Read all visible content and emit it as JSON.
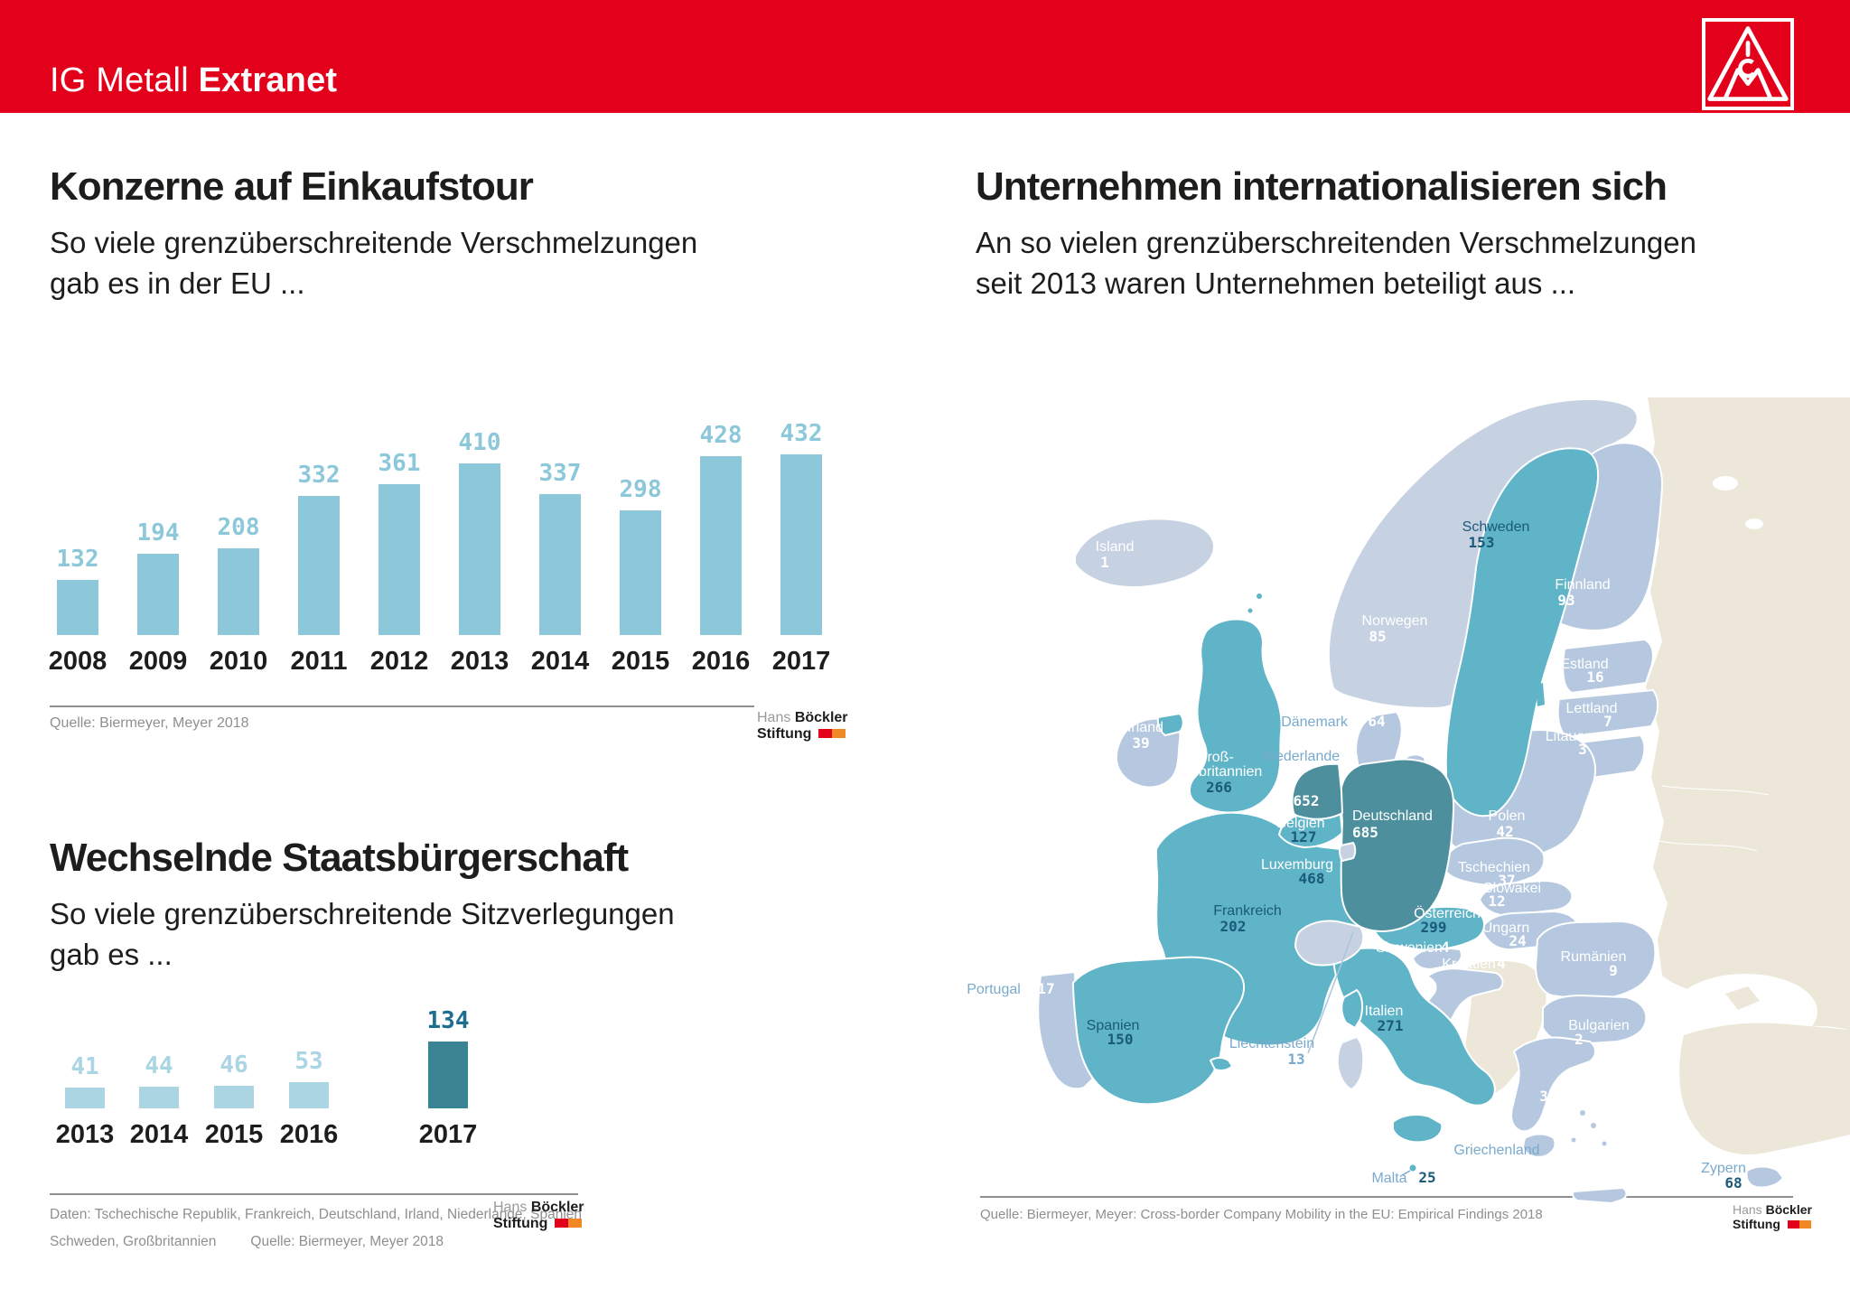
{
  "header": {
    "brand_regular": "IG Metall",
    "brand_bold": "Extranet"
  },
  "branding": {
    "hbs_line1_light": "Hans",
    "hbs_line1_bold": "Böckler",
    "hbs_line2_bold": "Stiftung"
  },
  "chart_data": [
    {
      "type": "bar",
      "title": "Konzerne auf Einkaufstour",
      "subtitle_line1": "So viele grenzüberschreitende Verschmelzungen",
      "subtitle_line2": "gab es in der EU ...",
      "categories": [
        "2008",
        "2009",
        "2010",
        "2011",
        "2012",
        "2013",
        "2014",
        "2015",
        "2016",
        "2017"
      ],
      "values": [
        132,
        194,
        208,
        332,
        361,
        410,
        337,
        298,
        428,
        432
      ],
      "ylim": [
        0,
        432
      ],
      "bar_color": "#8cc8da",
      "value_label_color": "#8cc8da",
      "source": "Quelle: Biermeyer, Meyer 2018"
    },
    {
      "type": "bar",
      "title": "Wechselnde Staatsbürgerschaft",
      "subtitle_line1": "So viele grenzüberschreitende Sitzverlegungen",
      "subtitle_line2": "gab es ...",
      "categories": [
        "2013",
        "2014",
        "2015",
        "2016",
        "2017"
      ],
      "values": [
        41,
        44,
        46,
        53,
        134
      ],
      "ylim": [
        0,
        134
      ],
      "highlight_index": 4,
      "bar_color": "#abd5e3",
      "highlight_color": "#3a8494",
      "value_label_color": "#abd5e3",
      "highlight_value_color": "#1d6f8d",
      "source_line1": "Daten: Tschechische Republik, Frankreich, Deutschland, Irland, Niederlande, Spanien",
      "source_line2_left": "Schweden, Großbritannien",
      "source_line2_right": "Quelle: Biermeyer, Meyer 2018"
    },
    {
      "type": "map",
      "title": "Unternehmen internationalisieren sich",
      "subtitle_line1": "An so vielen grenzüberschreitenden Verschmelzungen",
      "subtitle_line2": "seit 2013 waren Unternehmen beteiligt aus ...",
      "source": "Quelle: Biermeyer, Meyer: Cross-border Company Mobility in the EU: Empirical Findings 2018",
      "legend_colors": {
        "dark_teal": "#4e8f9e",
        "medium_teal": "#5fb4c7",
        "light_blue_eu": "#b5c8e0",
        "light_gray_non_eu": "#c6d1e2",
        "beige_non_eu": "#ece7d9"
      },
      "regions": [
        {
          "name": "Island",
          "value": 1
        },
        {
          "name": "Norwegen",
          "value": 85
        },
        {
          "name": "Schweden",
          "value": 153
        },
        {
          "name": "Finnland",
          "value": 93
        },
        {
          "name": "Estland",
          "value": 16
        },
        {
          "name": "Lettland",
          "value": 7
        },
        {
          "name": "Litauen",
          "value": 3
        },
        {
          "name": "Dänemark",
          "value": 64
        },
        {
          "name": "Irland",
          "value": 39
        },
        {
          "name": "Großbritannien",
          "label_line1": "Groß-",
          "label_line2": "britannien",
          "value": 266
        },
        {
          "name": "Niederlande",
          "value": 652
        },
        {
          "name": "Belgien",
          "value": 127
        },
        {
          "name": "Luxemburg",
          "value": 468
        },
        {
          "name": "Deutschland",
          "value": 685
        },
        {
          "name": "Frankreich",
          "value": 202
        },
        {
          "name": "Polen",
          "value": 42
        },
        {
          "name": "Tschechien",
          "value": 37
        },
        {
          "name": "Slowakei",
          "value": 12
        },
        {
          "name": "Österreich",
          "value": 299
        },
        {
          "name": "Ungarn",
          "value": 24
        },
        {
          "name": "Slowenien",
          "value": 4
        },
        {
          "name": "Kroatien",
          "value": 4
        },
        {
          "name": "Rumänien",
          "value": 9
        },
        {
          "name": "Italien",
          "value": 271
        },
        {
          "name": "Spanien",
          "value": 150
        },
        {
          "name": "Portugal",
          "value": 17
        },
        {
          "name": "Liechtenstein",
          "value": 13
        },
        {
          "name": "Bulgarien",
          "value": 2
        },
        {
          "name": "Griechenland",
          "value": 3
        },
        {
          "name": "Malta",
          "value": 25
        },
        {
          "name": "Zypern",
          "value": 68
        }
      ]
    }
  ]
}
